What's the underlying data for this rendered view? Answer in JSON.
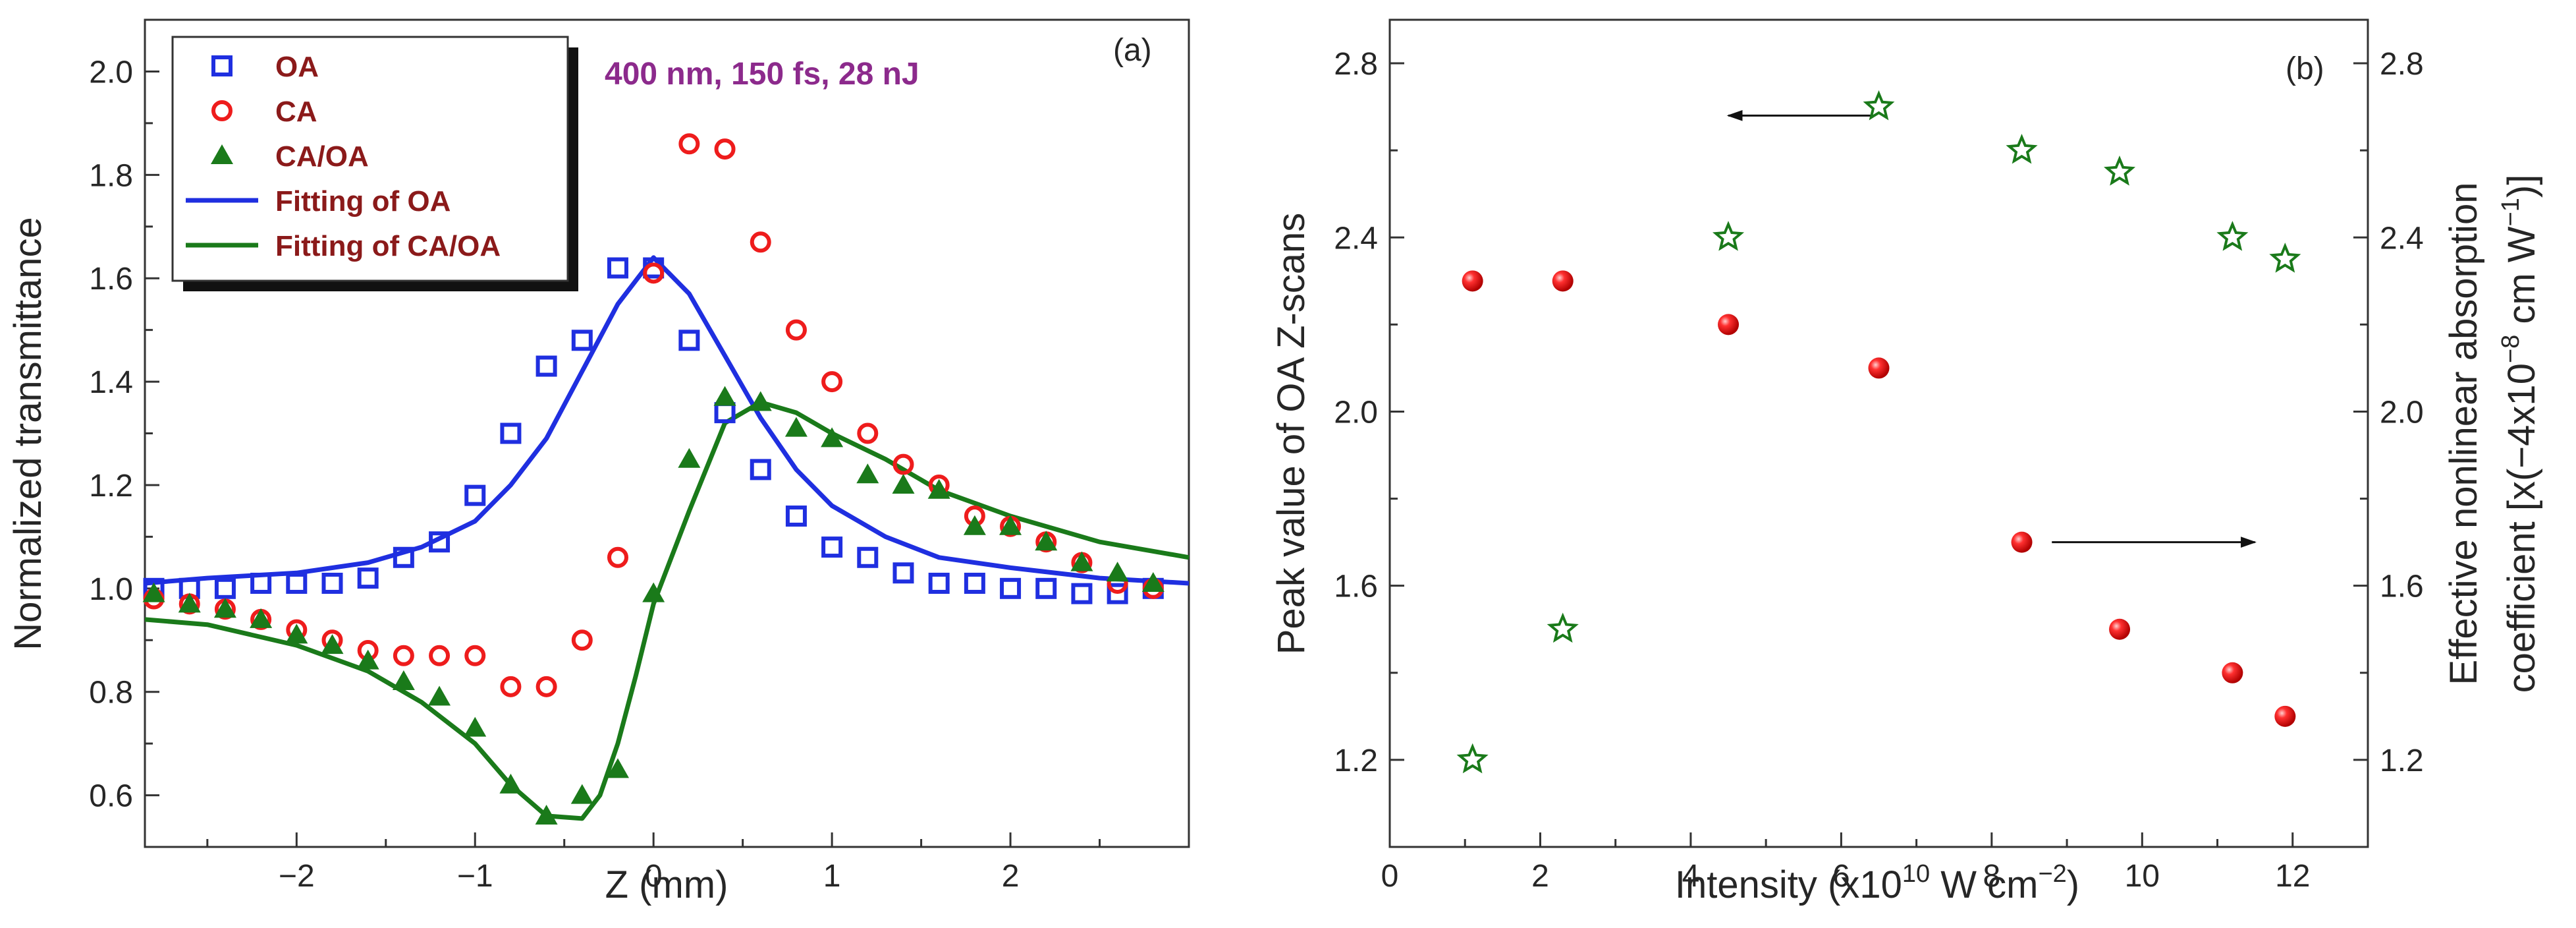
{
  "colors": {
    "blue": "#1f2fe0",
    "red": "#ee1c1c",
    "green": "#1a7a1a",
    "legend_text": "#8b1a1a",
    "condition_text": "#8c2a8c",
    "axis": "#333333"
  },
  "chart_data": [
    {
      "type": "scatter",
      "panel_label": "(a)",
      "annotation": "400 nm, 150 fs, 28 nJ",
      "xlabel": "Z (mm)",
      "ylabel": "Normalized transmittance",
      "xlim": [
        -2.85,
        3.0
      ],
      "ylim": [
        0.5,
        2.1
      ],
      "xticks": [
        -2,
        -1,
        0,
        1,
        2
      ],
      "xtick_labels": [
        "−2",
        "−1",
        "0",
        "1",
        "2"
      ],
      "yticks": [
        0.6,
        0.8,
        1.0,
        1.2,
        1.4,
        1.6,
        1.8,
        2.0
      ],
      "ytick_labels": [
        "0.6",
        "0.8",
        "1.0",
        "1.2",
        "1.4",
        "1.6",
        "1.8",
        "2.0"
      ],
      "legend": {
        "position": "top-left",
        "entries": [
          "OA",
          "CA",
          "CA/OA",
          "Fitting of OA",
          "Fitting of CA/OA"
        ]
      },
      "series": [
        {
          "name": "OA",
          "kind": "points",
          "marker": "square",
          "color": "blue",
          "x": [
            -2.8,
            -2.6,
            -2.4,
            -2.2,
            -2.0,
            -1.8,
            -1.6,
            -1.4,
            -1.2,
            -1.0,
            -0.8,
            -0.6,
            -0.4,
            -0.2,
            0.0,
            0.2,
            0.4,
            0.6,
            0.8,
            1.0,
            1.2,
            1.4,
            1.6,
            1.8,
            2.0,
            2.2,
            2.4,
            2.6,
            2.8
          ],
          "y": [
            1.0,
            1.0,
            1.0,
            1.01,
            1.01,
            1.01,
            1.02,
            1.06,
            1.09,
            1.18,
            1.3,
            1.43,
            1.48,
            1.62,
            1.62,
            1.48,
            1.34,
            1.23,
            1.14,
            1.08,
            1.06,
            1.03,
            1.01,
            1.01,
            1.0,
            1.0,
            0.99,
            0.99,
            1.0
          ]
        },
        {
          "name": "CA",
          "kind": "points",
          "marker": "circle",
          "color": "red",
          "x": [
            -2.8,
            -2.6,
            -2.4,
            -2.2,
            -2.0,
            -1.8,
            -1.6,
            -1.4,
            -1.2,
            -1.0,
            -0.8,
            -0.6,
            -0.4,
            -0.2,
            0.0,
            0.2,
            0.4,
            0.6,
            0.8,
            1.0,
            1.2,
            1.4,
            1.6,
            1.8,
            2.0,
            2.2,
            2.4,
            2.6,
            2.8
          ],
          "y": [
            0.98,
            0.97,
            0.96,
            0.94,
            0.92,
            0.9,
            0.88,
            0.87,
            0.87,
            0.87,
            0.81,
            0.81,
            0.9,
            1.06,
            1.61,
            1.86,
            1.85,
            1.67,
            1.5,
            1.4,
            1.3,
            1.24,
            1.2,
            1.14,
            1.12,
            1.09,
            1.05,
            1.01,
            1.0
          ]
        },
        {
          "name": "CA/OA",
          "kind": "points",
          "marker": "triangle",
          "color": "green",
          "x": [
            -2.8,
            -2.6,
            -2.4,
            -2.2,
            -2.0,
            -1.8,
            -1.6,
            -1.4,
            -1.2,
            -1.0,
            -0.8,
            -0.6,
            -0.4,
            -0.2,
            0.0,
            0.2,
            0.4,
            0.6,
            0.8,
            1.0,
            1.2,
            1.4,
            1.6,
            1.8,
            2.0,
            2.2,
            2.4,
            2.6,
            2.8
          ],
          "y": [
            0.99,
            0.97,
            0.96,
            0.94,
            0.91,
            0.89,
            0.86,
            0.82,
            0.79,
            0.73,
            0.62,
            0.56,
            0.6,
            0.65,
            0.99,
            1.25,
            1.37,
            1.36,
            1.31,
            1.29,
            1.22,
            1.2,
            1.19,
            1.12,
            1.12,
            1.09,
            1.05,
            1.03,
            1.01
          ]
        },
        {
          "name": "Fitting of OA",
          "kind": "line",
          "color": "blue",
          "x": [
            -2.85,
            -2.5,
            -2.0,
            -1.6,
            -1.3,
            -1.0,
            -0.8,
            -0.6,
            -0.4,
            -0.2,
            0.0,
            0.2,
            0.4,
            0.6,
            0.8,
            1.0,
            1.3,
            1.6,
            2.0,
            2.5,
            3.0
          ],
          "y": [
            1.01,
            1.02,
            1.03,
            1.05,
            1.08,
            1.13,
            1.2,
            1.29,
            1.42,
            1.55,
            1.64,
            1.57,
            1.45,
            1.33,
            1.23,
            1.16,
            1.1,
            1.06,
            1.04,
            1.02,
            1.01
          ]
        },
        {
          "name": "Fitting of CA/OA",
          "kind": "line",
          "color": "green",
          "x": [
            -2.85,
            -2.5,
            -2.0,
            -1.6,
            -1.3,
            -1.0,
            -0.8,
            -0.6,
            -0.4,
            -0.3,
            -0.2,
            -0.1,
            0.0,
            0.2,
            0.4,
            0.6,
            0.8,
            1.0,
            1.3,
            1.6,
            2.0,
            2.5,
            3.0
          ],
          "y": [
            0.94,
            0.93,
            0.89,
            0.84,
            0.78,
            0.7,
            0.62,
            0.56,
            0.555,
            0.6,
            0.7,
            0.83,
            0.97,
            1.15,
            1.32,
            1.36,
            1.34,
            1.3,
            1.25,
            1.19,
            1.14,
            1.09,
            1.06
          ]
        }
      ]
    },
    {
      "type": "scatter",
      "panel_label": "(b)",
      "xlabel": "Intensity (x10",
      "xlabel_sup": "10",
      "xlabel_tail": " W cm",
      "xlabel_sup2": "−2",
      "xlabel_end": ")",
      "ylabel_left": "Peak value of OA Z-scans",
      "ylabel_right_line1": "Effective nonlinear absorption",
      "ylabel_right_line2_a": "coefficient [x(−4x10",
      "ylabel_right_line2_sup": "−8",
      "ylabel_right_line2_b": " cm W",
      "ylabel_right_line2_sup2": "−1",
      "ylabel_right_line2_c": ")]",
      "xlim": [
        0,
        13
      ],
      "ylim": [
        1.0,
        2.9
      ],
      "xticks": [
        0,
        2,
        4,
        6,
        8,
        10,
        12
      ],
      "xtick_labels": [
        "0",
        "2",
        "4",
        "6",
        "8",
        "10",
        "12"
      ],
      "yticks": [
        1.2,
        1.6,
        2.0,
        2.4,
        2.8
      ],
      "ytick_labels": [
        "1.2",
        "1.6",
        "2.0",
        "2.4",
        "2.8"
      ],
      "series": [
        {
          "name": "Peak value of OA Z-scans",
          "axis": "left",
          "marker": "star",
          "color": "green",
          "x": [
            1.1,
            2.3,
            4.5,
            6.5,
            8.4,
            9.7,
            11.2,
            11.9
          ],
          "y": [
            1.2,
            1.5,
            2.4,
            2.7,
            2.6,
            2.55,
            2.4,
            2.35
          ]
        },
        {
          "name": "Effective nonlinear absorption coefficient",
          "axis": "right",
          "marker": "sphere",
          "color": "red",
          "x": [
            1.1,
            2.3,
            4.5,
            6.5,
            8.4,
            9.7,
            11.2,
            11.9
          ],
          "y": [
            2.3,
            2.3,
            2.2,
            2.1,
            1.7,
            1.5,
            1.4,
            1.3
          ]
        }
      ],
      "arrows": [
        {
          "label": "left-axis",
          "from": [
            6.4,
            2.68
          ],
          "to": [
            4.5,
            2.68
          ]
        },
        {
          "label": "right-axis",
          "from": [
            8.8,
            1.7
          ],
          "to": [
            11.5,
            1.7
          ]
        }
      ]
    }
  ]
}
